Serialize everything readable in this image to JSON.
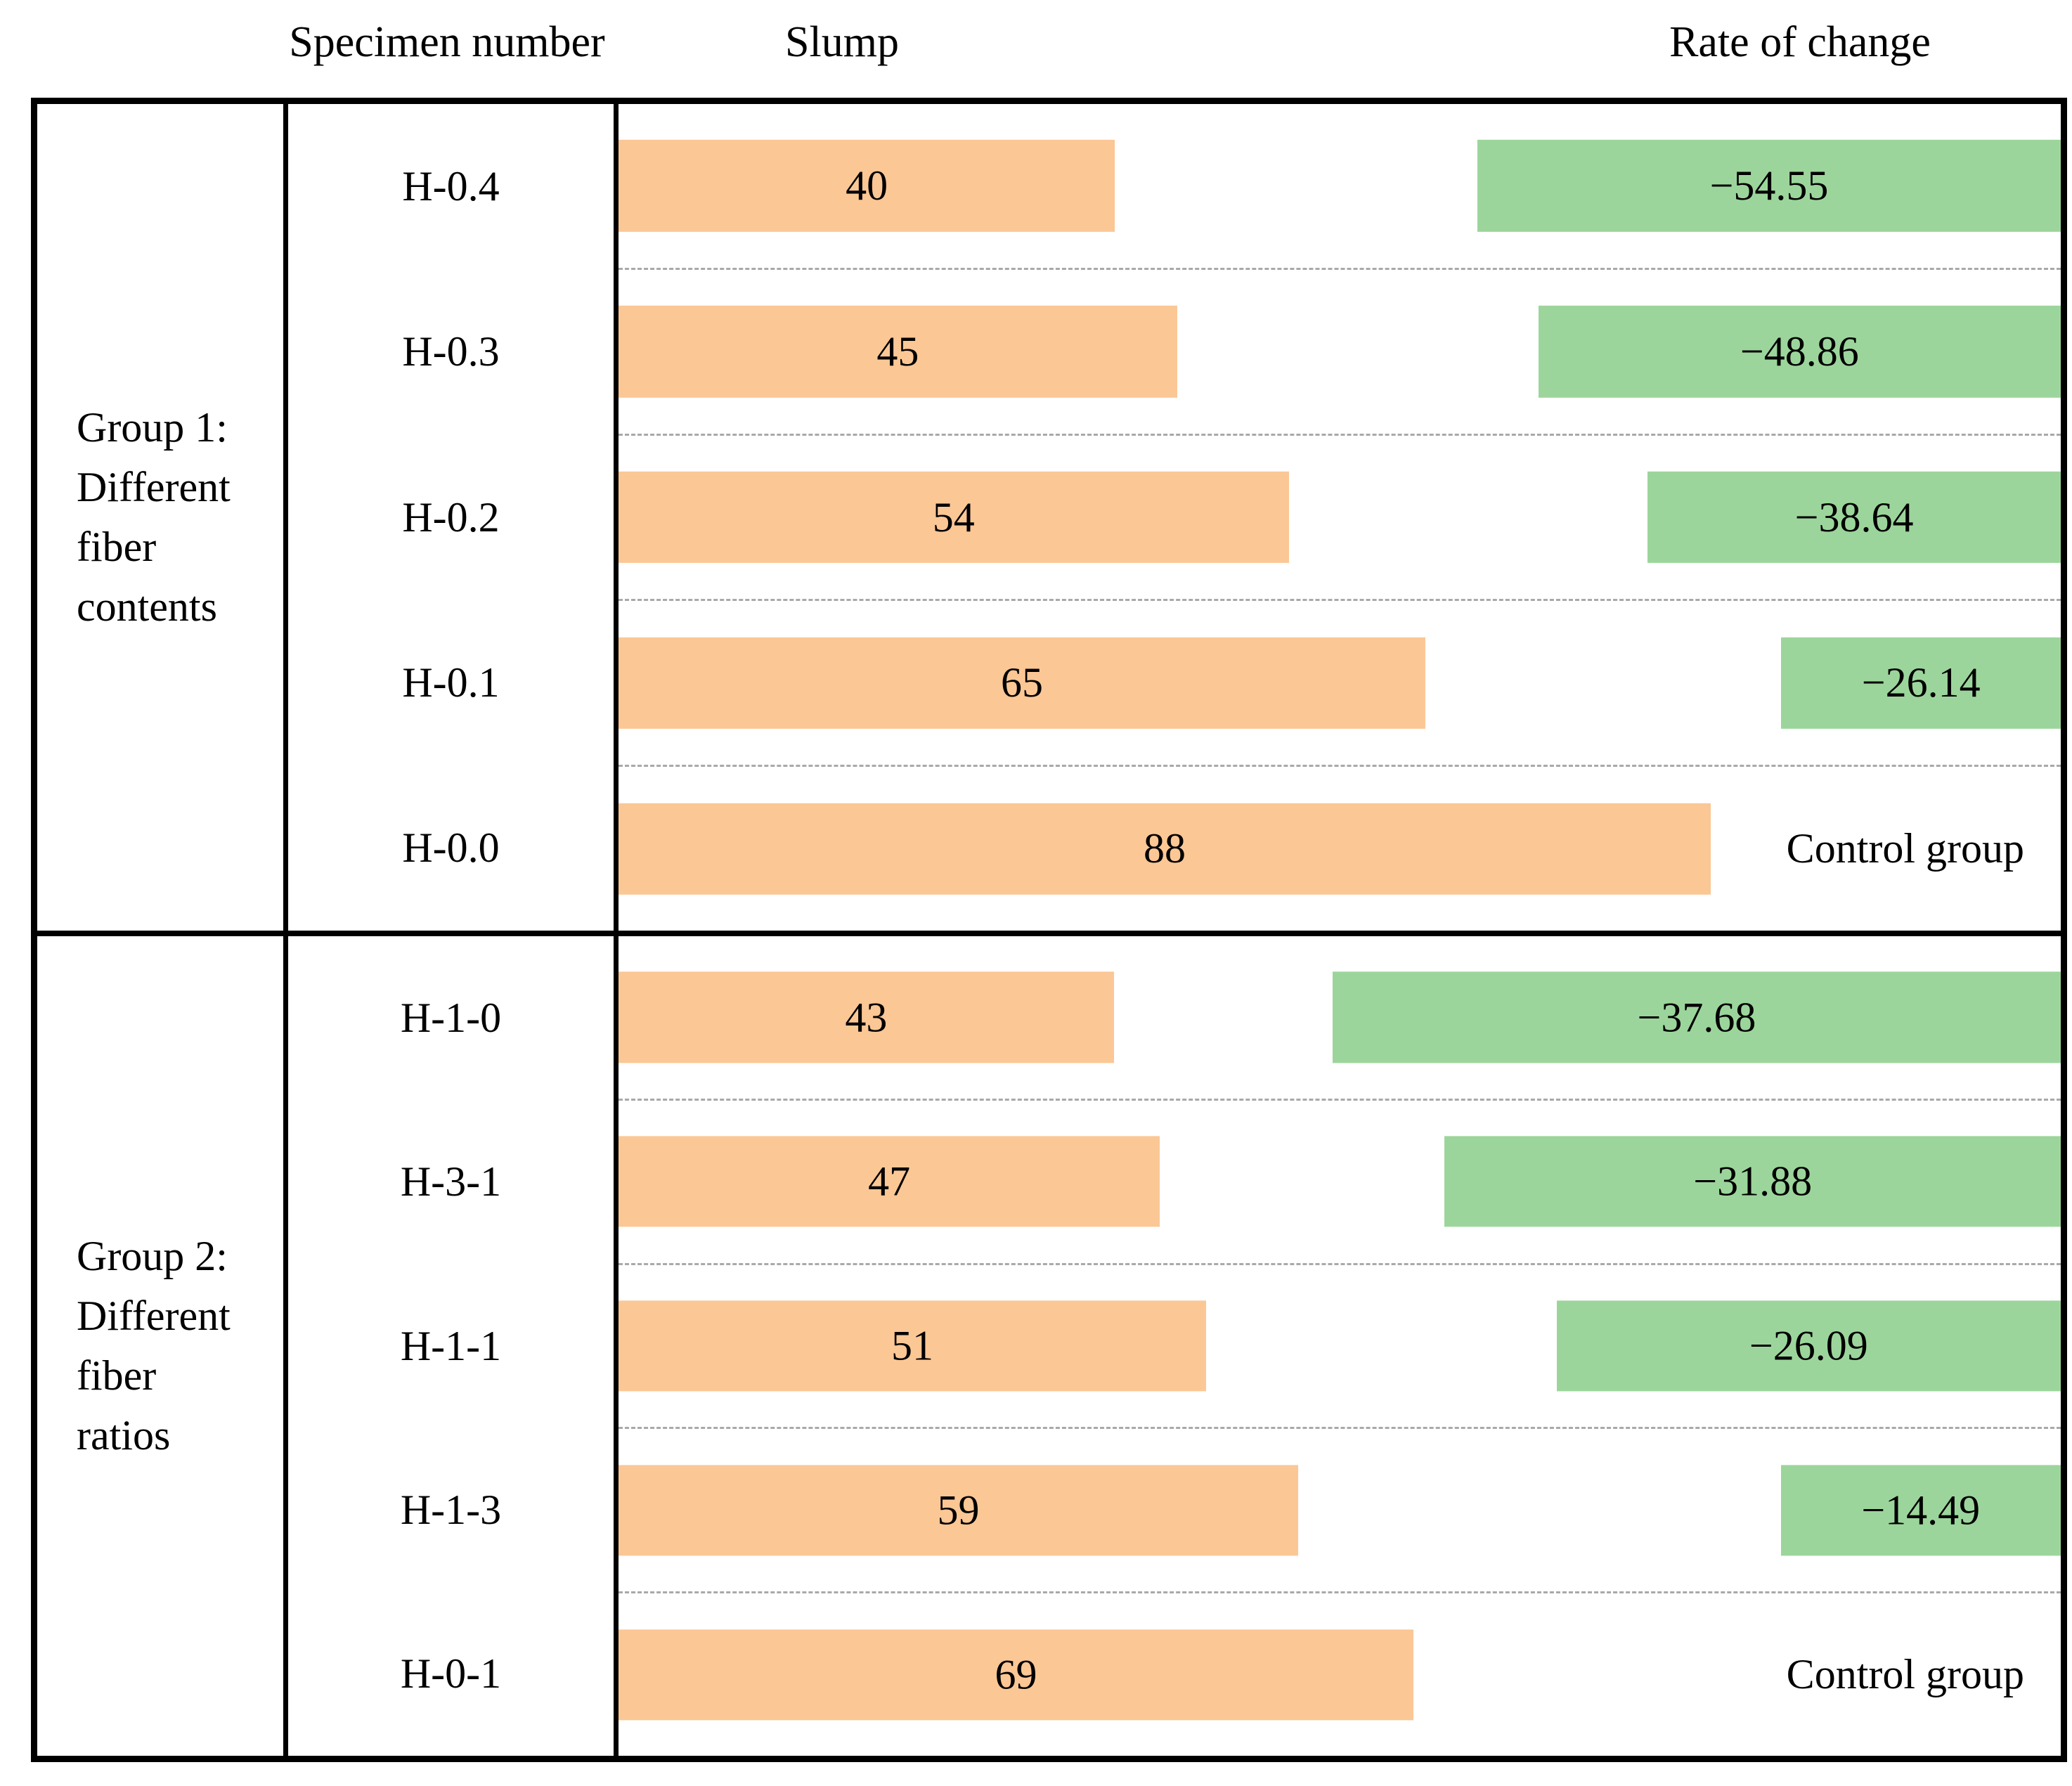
{
  "headers": {
    "specimen": "Specimen number",
    "slump": "Slump",
    "rate": "Rate of change"
  },
  "chart_data": {
    "type": "bar",
    "orientation": "horizontal",
    "panels": [
      "Slump",
      "Rate of change"
    ],
    "gridlines": "dashed horizontal separators between category rows, chart area only",
    "legend": "none",
    "colors": {
      "slump_bar": "#FBC795",
      "rate_bar": "#9CD59B",
      "border": "#000000",
      "gridline": "#a9a9a9"
    },
    "groups": [
      {
        "label": "Group 1: Different fiber contents",
        "label_lines": [
          "Group 1:",
          "Different",
          "fiber",
          "contents"
        ],
        "layout_hints": {
          "slump_pct_per_unit": 0.8606,
          "rate_pct_per_unit": 0.7415
        },
        "rows": [
          {
            "specimen": "H-0.4",
            "slump": 40,
            "rate": -54.55,
            "rate_label": "−54.55"
          },
          {
            "specimen": "H-0.3",
            "slump": 45,
            "rate": -48.86,
            "rate_label": "−48.86"
          },
          {
            "specimen": "H-0.2",
            "slump": 54,
            "rate": -38.64,
            "rate_label": "−38.64"
          },
          {
            "specimen": "H-0.1",
            "slump": 65,
            "rate": -26.14,
            "rate_label": "−26.14"
          },
          {
            "specimen": "H-0.0",
            "slump": 88,
            "rate": null,
            "rate_label": "Control group",
            "is_control": true
          }
        ]
      },
      {
        "label": "Group 2: Different fiber ratios",
        "label_lines": [
          "Group 2:",
          "Different",
          "fiber",
          "ratios"
        ],
        "layout_hints": {
          "slump_pct_per_unit": 0.7988,
          "rate_pct_per_unit": 1.34
        },
        "rows": [
          {
            "specimen": "H-1-0",
            "slump": 43,
            "rate": -37.68,
            "rate_label": "−37.68"
          },
          {
            "specimen": "H-3-1",
            "slump": 47,
            "rate": -31.88,
            "rate_label": "−31.88"
          },
          {
            "specimen": "H-1-1",
            "slump": 51,
            "rate": -26.09,
            "rate_label": "−26.09"
          },
          {
            "specimen": "H-1-3",
            "slump": 59,
            "rate": -14.49,
            "rate_label": "−14.49"
          },
          {
            "specimen": "H-0-1",
            "slump": 69,
            "rate": null,
            "rate_label": "Control group",
            "is_control": true
          }
        ]
      }
    ]
  }
}
